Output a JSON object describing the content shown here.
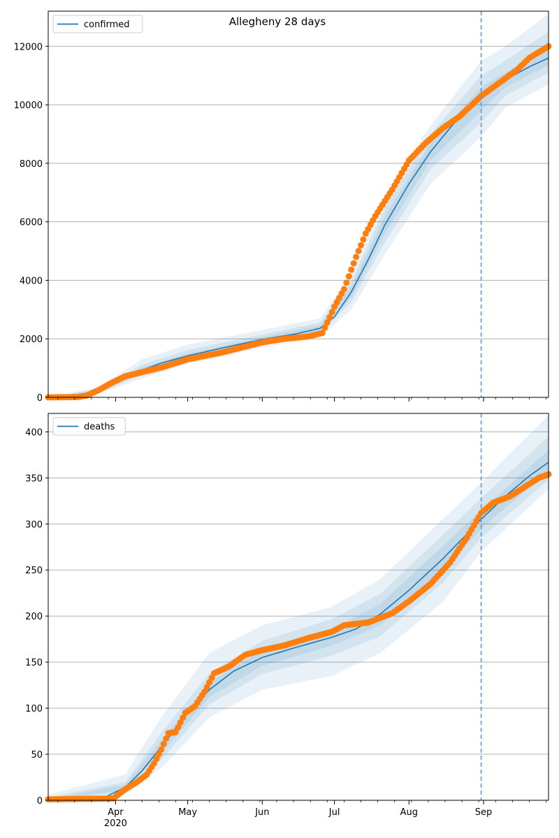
{
  "suptitle": "Allegheny 28 days",
  "xaxis": {
    "ticks": [
      {
        "date": "2020-04-01",
        "label": "Apr",
        "sublabel": "2020"
      },
      {
        "date": "2020-05-01",
        "label": "May",
        "sublabel": ""
      },
      {
        "date": "2020-06-01",
        "label": "Jun",
        "sublabel": ""
      },
      {
        "date": "2020-07-01",
        "label": "Jul",
        "sublabel": ""
      },
      {
        "date": "2020-08-01",
        "label": "Aug",
        "sublabel": ""
      },
      {
        "date": "2020-09-01",
        "label": "Sep",
        "sublabel": ""
      }
    ],
    "range": [
      "2020-03-04",
      "2020-09-28"
    ],
    "forecast_start": "2020-08-31"
  },
  "colors": {
    "model": "#1f77b4",
    "observed": "#ff7f0e",
    "band": "#1f77b4",
    "vline": "#5b9bd5",
    "grid": "#b0b0b0"
  },
  "chart_data": [
    {
      "type": "line",
      "legend": "confirmed",
      "legend_position": "top-left",
      "grid": "horizontal",
      "ylim": [
        0,
        13200
      ],
      "yticks": [
        0,
        2000,
        4000,
        6000,
        8000,
        10000,
        12000
      ],
      "model_points": [
        [
          "2020-03-04",
          0
        ],
        [
          "2020-03-10",
          5
        ],
        [
          "2020-03-15",
          20
        ],
        [
          "2020-03-20",
          80
        ],
        [
          "2020-03-25",
          220
        ],
        [
          "2020-03-30",
          450
        ],
        [
          "2020-04-05",
          700
        ],
        [
          "2020-04-12",
          930
        ],
        [
          "2020-04-20",
          1170
        ],
        [
          "2020-05-01",
          1420
        ],
        [
          "2020-05-15",
          1680
        ],
        [
          "2020-06-01",
          1980
        ],
        [
          "2020-06-15",
          2170
        ],
        [
          "2020-06-25",
          2360
        ],
        [
          "2020-07-01",
          2750
        ],
        [
          "2020-07-08",
          3600
        ],
        [
          "2020-07-15",
          4700
        ],
        [
          "2020-07-22",
          5900
        ],
        [
          "2020-08-01",
          7300
        ],
        [
          "2020-08-10",
          8400
        ],
        [
          "2020-08-20",
          9400
        ],
        [
          "2020-08-31",
          10200
        ],
        [
          "2020-09-10",
          10850
        ],
        [
          "2020-09-20",
          11300
        ],
        [
          "2020-09-28",
          11600
        ]
      ],
      "bands": [
        {
          "level": "outer",
          "lower": [
            [
              "2020-03-04",
              0
            ],
            [
              "2020-03-25",
              120
            ],
            [
              "2020-04-12",
              650
            ],
            [
              "2020-05-01",
              1150
            ],
            [
              "2020-06-01",
              1700
            ],
            [
              "2020-06-25",
              2050
            ],
            [
              "2020-07-08",
              3000
            ],
            [
              "2020-07-22",
              4900
            ],
            [
              "2020-08-10",
              7300
            ],
            [
              "2020-08-31",
              8900
            ],
            [
              "2020-09-10",
              9900
            ],
            [
              "2020-09-28",
              10700
            ]
          ],
          "upper": [
            [
              "2020-03-04",
              0
            ],
            [
              "2020-03-25",
              350
            ],
            [
              "2020-04-12",
              1300
            ],
            [
              "2020-05-01",
              1800
            ],
            [
              "2020-06-01",
              2300
            ],
            [
              "2020-06-25",
              2700
            ],
            [
              "2020-07-08",
              4200
            ],
            [
              "2020-07-22",
              6900
            ],
            [
              "2020-08-10",
              9300
            ],
            [
              "2020-08-31",
              11500
            ],
            [
              "2020-09-10",
              12000
            ],
            [
              "2020-09-28",
              13100
            ]
          ]
        },
        {
          "level": "middle",
          "lower": [
            [
              "2020-03-04",
              0
            ],
            [
              "2020-03-25",
              160
            ],
            [
              "2020-04-12",
              760
            ],
            [
              "2020-05-01",
              1260
            ],
            [
              "2020-06-01",
              1820
            ],
            [
              "2020-06-25",
              2170
            ],
            [
              "2020-07-08",
              3250
            ],
            [
              "2020-07-22",
              5300
            ],
            [
              "2020-08-10",
              7800
            ],
            [
              "2020-08-31",
              9400
            ],
            [
              "2020-09-10",
              10300
            ],
            [
              "2020-09-28",
              11100
            ]
          ],
          "upper": [
            [
              "2020-03-04",
              0
            ],
            [
              "2020-03-25",
              290
            ],
            [
              "2020-04-12",
              1120
            ],
            [
              "2020-05-01",
              1620
            ],
            [
              "2020-06-01",
              2150
            ],
            [
              "2020-06-25",
              2560
            ],
            [
              "2020-07-08",
              3950
            ],
            [
              "2020-07-22",
              6500
            ],
            [
              "2020-08-10",
              9000
            ],
            [
              "2020-08-31",
              11000
            ],
            [
              "2020-09-10",
              11500
            ],
            [
              "2020-09-28",
              12500
            ]
          ]
        },
        {
          "level": "inner",
          "lower": [
            [
              "2020-03-04",
              0
            ],
            [
              "2020-03-25",
              190
            ],
            [
              "2020-04-12",
              840
            ],
            [
              "2020-05-01",
              1340
            ],
            [
              "2020-06-01",
              1900
            ],
            [
              "2020-06-25",
              2260
            ],
            [
              "2020-07-08",
              3420
            ],
            [
              "2020-07-22",
              5600
            ],
            [
              "2020-08-10",
              8100
            ],
            [
              "2020-08-31",
              9800
            ],
            [
              "2020-09-10",
              10600
            ],
            [
              "2020-09-28",
              11350
            ]
          ],
          "upper": [
            [
              "2020-03-04",
              0
            ],
            [
              "2020-03-25",
              250
            ],
            [
              "2020-04-12",
              1020
            ],
            [
              "2020-05-01",
              1500
            ],
            [
              "2020-06-01",
              2060
            ],
            [
              "2020-06-25",
              2460
            ],
            [
              "2020-07-08",
              3780
            ],
            [
              "2020-07-22",
              6200
            ],
            [
              "2020-08-10",
              8700
            ],
            [
              "2020-08-31",
              10600
            ],
            [
              "2020-09-10",
              11100
            ],
            [
              "2020-09-28",
              11900
            ]
          ]
        }
      ],
      "observed_points": [
        [
          "2020-03-04",
          0
        ],
        [
          "2020-03-16",
          10
        ],
        [
          "2020-03-20",
          60
        ],
        [
          "2020-03-25",
          250
        ],
        [
          "2020-03-30",
          480
        ],
        [
          "2020-04-05",
          720
        ],
        [
          "2020-04-12",
          860
        ],
        [
          "2020-04-20",
          1020
        ],
        [
          "2020-05-01",
          1300
        ],
        [
          "2020-05-15",
          1530
        ],
        [
          "2020-06-01",
          1880
        ],
        [
          "2020-06-10",
          2000
        ],
        [
          "2020-06-20",
          2080
        ],
        [
          "2020-06-26",
          2200
        ],
        [
          "2020-07-01",
          3100
        ],
        [
          "2020-07-05",
          3700
        ],
        [
          "2020-07-10",
          4800
        ],
        [
          "2020-07-14",
          5600
        ],
        [
          "2020-07-18",
          6200
        ],
        [
          "2020-07-25",
          7100
        ],
        [
          "2020-08-01",
          8100
        ],
        [
          "2020-08-08",
          8700
        ],
        [
          "2020-08-15",
          9200
        ],
        [
          "2020-08-22",
          9600
        ],
        [
          "2020-08-31",
          10300
        ],
        [
          "2020-09-05",
          10600
        ],
        [
          "2020-09-10",
          10900
        ],
        [
          "2020-09-15",
          11200
        ],
        [
          "2020-09-20",
          11600
        ],
        [
          "2020-09-28",
          12000
        ]
      ]
    },
    {
      "type": "line",
      "legend": "deaths",
      "legend_position": "top-left",
      "grid": "horizontal",
      "ylim": [
        0,
        420
      ],
      "yticks": [
        0,
        50,
        100,
        150,
        200,
        250,
        300,
        350,
        400
      ],
      "model_points": [
        [
          "2020-03-04",
          0
        ],
        [
          "2020-03-20",
          1
        ],
        [
          "2020-03-28",
          4
        ],
        [
          "2020-04-05",
          14
        ],
        [
          "2020-04-12",
          32
        ],
        [
          "2020-04-20",
          58
        ],
        [
          "2020-05-01",
          95
        ],
        [
          "2020-05-10",
          120
        ],
        [
          "2020-05-20",
          140
        ],
        [
          "2020-06-01",
          155
        ],
        [
          "2020-06-15",
          166
        ],
        [
          "2020-06-30",
          177
        ],
        [
          "2020-07-10",
          186
        ],
        [
          "2020-07-20",
          202
        ],
        [
          "2020-08-01",
          228
        ],
        [
          "2020-08-15",
          262
        ],
        [
          "2020-08-31",
          305
        ],
        [
          "2020-09-10",
          330
        ],
        [
          "2020-09-20",
          352
        ],
        [
          "2020-09-28",
          367
        ]
      ],
      "bands": [
        {
          "level": "outer",
          "lower": [
            [
              "2020-03-04",
              0
            ],
            [
              "2020-04-05",
              6
            ],
            [
              "2020-04-20",
              35
            ],
            [
              "2020-05-10",
              90
            ],
            [
              "2020-06-01",
              120
            ],
            [
              "2020-06-30",
              135
            ],
            [
              "2020-07-20",
              160
            ],
            [
              "2020-08-15",
              215
            ],
            [
              "2020-08-31",
              270
            ],
            [
              "2020-09-28",
              338
            ]
          ],
          "upper": [
            [
              "2020-03-04",
              6
            ],
            [
              "2020-04-05",
              28
            ],
            [
              "2020-04-20",
              90
            ],
            [
              "2020-05-10",
              160
            ],
            [
              "2020-06-01",
              190
            ],
            [
              "2020-06-30",
              210
            ],
            [
              "2020-07-20",
              240
            ],
            [
              "2020-08-15",
              305
            ],
            [
              "2020-08-31",
              345
            ],
            [
              "2020-09-28",
              418
            ]
          ]
        },
        {
          "level": "middle",
          "lower": [
            [
              "2020-03-04",
              0
            ],
            [
              "2020-04-05",
              9
            ],
            [
              "2020-04-20",
              44
            ],
            [
              "2020-05-10",
              104
            ],
            [
              "2020-06-01",
              137
            ],
            [
              "2020-06-30",
              157
            ],
            [
              "2020-07-20",
              178
            ],
            [
              "2020-08-15",
              236
            ],
            [
              "2020-08-31",
              285
            ],
            [
              "2020-09-28",
              348
            ]
          ],
          "upper": [
            [
              "2020-03-04",
              3
            ],
            [
              "2020-04-05",
              20
            ],
            [
              "2020-04-20",
              73
            ],
            [
              "2020-05-10",
              138
            ],
            [
              "2020-06-01",
              173
            ],
            [
              "2020-06-30",
              197
            ],
            [
              "2020-07-20",
              224
            ],
            [
              "2020-08-15",
              288
            ],
            [
              "2020-08-31",
              328
            ],
            [
              "2020-09-28",
              395
            ]
          ]
        },
        {
          "level": "inner",
          "lower": [
            [
              "2020-03-04",
              0
            ],
            [
              "2020-04-05",
              11
            ],
            [
              "2020-04-20",
              51
            ],
            [
              "2020-05-10",
              112
            ],
            [
              "2020-06-01",
              146
            ],
            [
              "2020-06-30",
              168
            ],
            [
              "2020-07-20",
              190
            ],
            [
              "2020-08-15",
              248
            ],
            [
              "2020-08-31",
              295
            ],
            [
              "2020-09-28",
              357
            ]
          ],
          "upper": [
            [
              "2020-03-04",
              1
            ],
            [
              "2020-04-05",
              17
            ],
            [
              "2020-04-20",
              65
            ],
            [
              "2020-05-10",
              128
            ],
            [
              "2020-06-01",
              164
            ],
            [
              "2020-06-30",
              186
            ],
            [
              "2020-07-20",
              213
            ],
            [
              "2020-08-15",
              276
            ],
            [
              "2020-08-31",
              315
            ],
            [
              "2020-09-28",
              380
            ]
          ]
        }
      ],
      "observed_points": [
        [
          "2020-03-04",
          1
        ],
        [
          "2020-03-31",
          2
        ],
        [
          "2020-04-05",
          12
        ],
        [
          "2020-04-10",
          20
        ],
        [
          "2020-04-14",
          28
        ],
        [
          "2020-04-17",
          40
        ],
        [
          "2020-04-20",
          55
        ],
        [
          "2020-04-23",
          73
        ],
        [
          "2020-04-26",
          74
        ],
        [
          "2020-04-30",
          95
        ],
        [
          "2020-05-04",
          102
        ],
        [
          "2020-05-08",
          118
        ],
        [
          "2020-05-12",
          138
        ],
        [
          "2020-05-18",
          145
        ],
        [
          "2020-05-25",
          158
        ],
        [
          "2020-06-01",
          163
        ],
        [
          "2020-06-10",
          168
        ],
        [
          "2020-06-20",
          176
        ],
        [
          "2020-06-30",
          183
        ],
        [
          "2020-07-05",
          190
        ],
        [
          "2020-07-15",
          193
        ],
        [
          "2020-07-25",
          203
        ],
        [
          "2020-08-01",
          216
        ],
        [
          "2020-08-10",
          235
        ],
        [
          "2020-08-18",
          258
        ],
        [
          "2020-08-25",
          285
        ],
        [
          "2020-08-31",
          312
        ],
        [
          "2020-09-05",
          323
        ],
        [
          "2020-09-12",
          330
        ],
        [
          "2020-09-18",
          340
        ],
        [
          "2020-09-24",
          350
        ],
        [
          "2020-09-28",
          354
        ]
      ]
    }
  ]
}
